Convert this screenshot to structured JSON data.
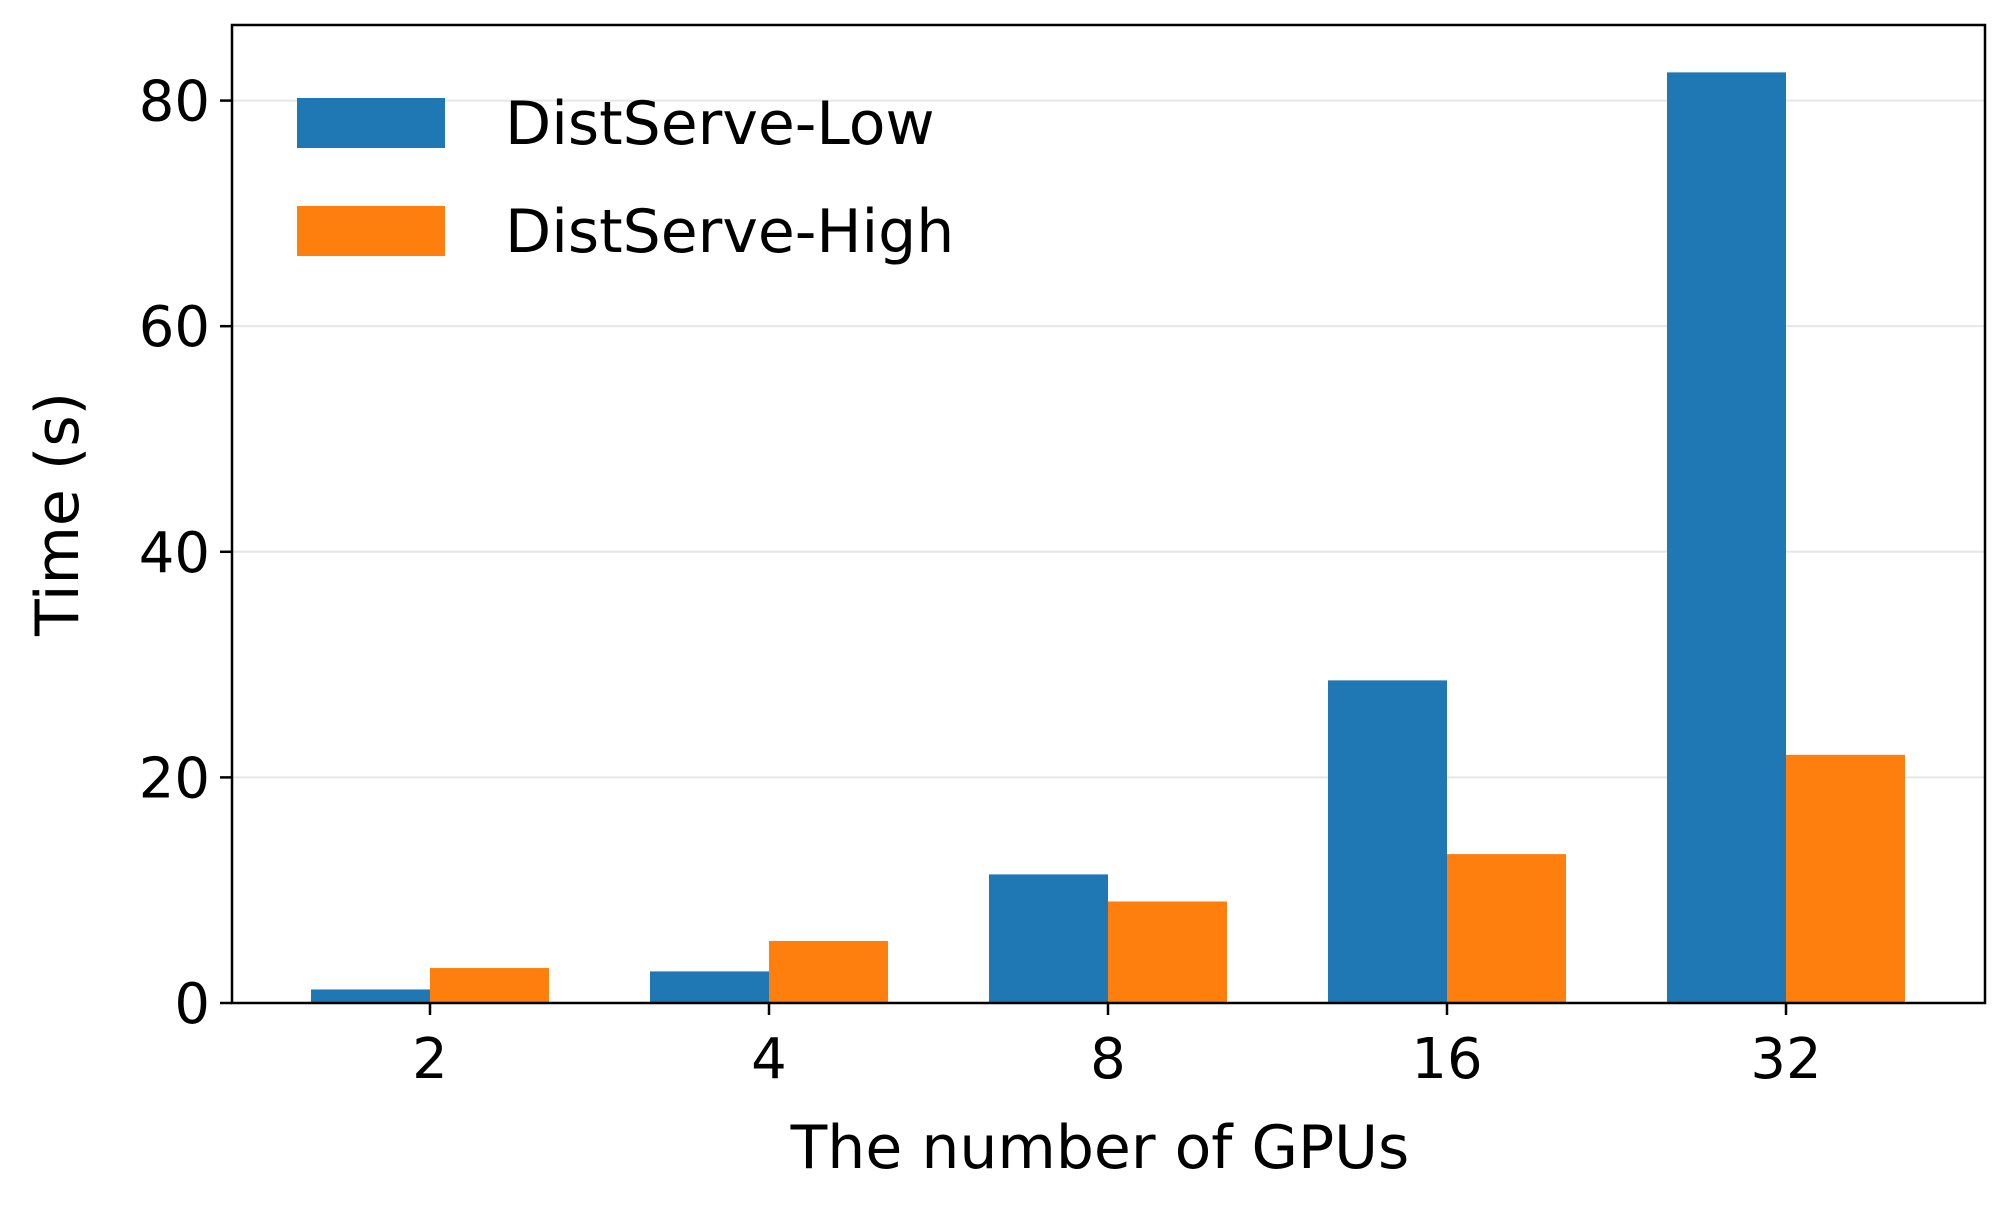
{
  "chart_data": {
    "type": "bar",
    "categories": [
      "2",
      "4",
      "8",
      "16",
      "32"
    ],
    "series": [
      {
        "name": "DistServe-Low",
        "color": "#1f77b4",
        "values": [
          1.2,
          2.8,
          11.4,
          28.6,
          82.5
        ]
      },
      {
        "name": "DistServe-High",
        "color": "#ff7f0e",
        "values": [
          3.1,
          5.5,
          9.0,
          13.2,
          22.0
        ]
      }
    ],
    "title": "",
    "xlabel": "The number of GPUs",
    "ylabel": "Time (s)",
    "ylim": [
      0,
      86.7
    ],
    "yticks": [
      0,
      20,
      40,
      60,
      80
    ],
    "grid": "horizontal",
    "legend_position": "top-left"
  }
}
